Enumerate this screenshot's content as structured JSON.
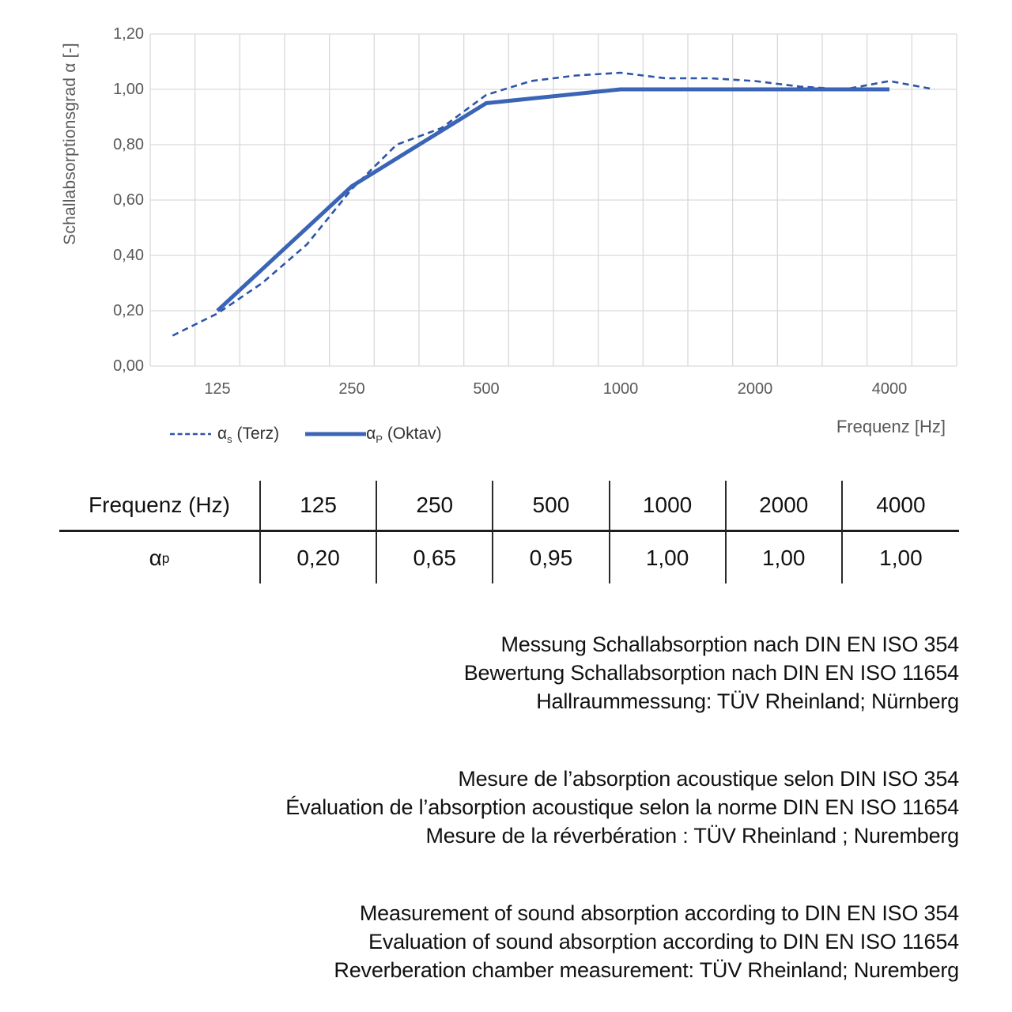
{
  "chart": {
    "y_axis_title": "Schallabsorptionsgrad α [-]",
    "x_axis_title": "Frequenz [Hz]",
    "legend": {
      "terz": {
        "symbol": "α",
        "sub": "s",
        "rest": " (Terz)"
      },
      "oktav": {
        "symbol": "α",
        "sub": "P",
        "rest": " (Oktav)"
      }
    }
  },
  "chart_data": {
    "type": "line",
    "title": "",
    "ylabel": "Schallabsorptionsgrad α [-]",
    "xlabel": "Frequenz [Hz]",
    "ylim": [
      0.0,
      1.2
    ],
    "ytick_step": 0.2,
    "ytick_labels": [
      "0,00",
      "0,20",
      "0,40",
      "0,60",
      "0,80",
      "1,00",
      "1,20"
    ],
    "grid": true,
    "legend_position": "bottom-left",
    "categories": [
      100,
      125,
      160,
      200,
      250,
      315,
      400,
      500,
      630,
      800,
      1000,
      1250,
      1600,
      2000,
      2500,
      3150,
      4000,
      5000
    ],
    "xticks": [
      125,
      250,
      500,
      1000,
      2000,
      4000
    ],
    "xtick_labels": [
      "125",
      "250",
      "500",
      "1000",
      "2000",
      "4000"
    ],
    "series": [
      {
        "name": "αs (Terz)",
        "line_style": "dashed",
        "color": "#2d55a8",
        "x": [
          100,
          125,
          160,
          200,
          250,
          315,
          400,
          500,
          630,
          800,
          1000,
          1250,
          1600,
          2000,
          2500,
          3150,
          4000,
          5000
        ],
        "values": [
          0.11,
          0.19,
          0.3,
          0.44,
          0.64,
          0.8,
          0.86,
          0.98,
          1.03,
          1.05,
          1.06,
          1.04,
          1.04,
          1.03,
          1.01,
          1.0,
          1.03,
          1.0
        ]
      },
      {
        "name": "αP (Oktav)",
        "line_style": "solid",
        "color": "#3a64b5",
        "x": [
          125,
          250,
          500,
          1000,
          2000,
          4000
        ],
        "values": [
          0.2,
          0.65,
          0.95,
          1.0,
          1.0,
          1.0
        ]
      }
    ]
  },
  "table": {
    "header": [
      "Frequenz (Hz)",
      "125",
      "250",
      "500",
      "1000",
      "2000",
      "4000"
    ],
    "row_label": {
      "base": "α",
      "sub": "p"
    },
    "values": [
      "0,20",
      "0,65",
      "0,95",
      "1,00",
      "1,00",
      "1,00"
    ]
  },
  "notes": {
    "german": [
      "Messung Schallabsorption nach DIN EN ISO 354",
      "Bewertung Schallabsorption nach DIN EN ISO 11654",
      "Hallraummessung: TÜV Rheinland; Nürnberg"
    ],
    "french": [
      "Mesure de l’absorption acoustique selon DIN ISO 354",
      "Évaluation de l’absorption acoustique selon la norme DIN EN ISO 11654",
      "Mesure de la réverbération : TÜV Rheinland ; Nuremberg"
    ],
    "english": [
      "Measurement of sound absorption according to DIN EN ISO 354",
      "Evaluation of sound absorption according to DIN EN ISO 11654",
      "Reverberation chamber measurement: TÜV Rheinland; Nuremberg"
    ]
  },
  "colors": {
    "solid_line": "#3a64b5",
    "dashed_line": "#2d55a8",
    "grid": "#d9d9d9",
    "axis_text": "#595959",
    "body_text": "#111111"
  }
}
